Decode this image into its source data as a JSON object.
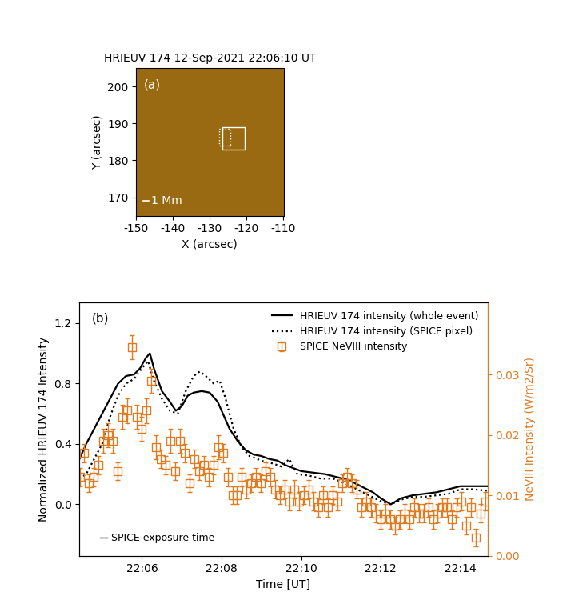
{
  "chart_data": [
    {
      "type": "image",
      "title": "HRIEUV 174 12-Sep-2021 22:06:10 UT",
      "panel_label": "(a)",
      "xlabel": "X (arcsec)",
      "ylabel": "Y (arcsec)",
      "xlim": [
        -150,
        -110
      ],
      "ylim": [
        165,
        205
      ],
      "xticks": [
        -150,
        -140,
        -130,
        -120,
        -110
      ],
      "yticks": [
        170,
        180,
        190,
        200
      ],
      "color": "#9a6a12",
      "boxes": [
        {
          "x": [
            -126.5,
            -120.5
          ],
          "y": [
            183,
            189
          ],
          "line_style": "solid",
          "color": "#ffffff"
        },
        {
          "x": [
            -127.5,
            -124.5
          ],
          "y": [
            184,
            188.5
          ],
          "line_style": "dotted",
          "color": "#ffffff"
        }
      ],
      "scale_bar": {
        "label": "1 Mm",
        "length": 1.4
      }
    },
    {
      "type": "line",
      "panel_label": "(b)",
      "xlabel": "Time [UT]",
      "ylabel": "Normalized HRIEUV 174 Intensity",
      "y2label": "NeVIII Intensity (W/m2/Sr)",
      "xlim": [
        4.43,
        14.68
      ],
      "xticks": [
        {
          "value": 6,
          "label": "22:06"
        },
        {
          "value": 8,
          "label": "22:08"
        },
        {
          "value": 10,
          "label": "22:10"
        },
        {
          "value": 12,
          "label": "22:12"
        },
        {
          "value": 14,
          "label": "22:14"
        }
      ],
      "ylim": [
        -0.34,
        1.34
      ],
      "yticks": [
        0.0,
        0.4,
        0.8,
        1.2
      ],
      "y2lim": [
        0,
        0.042
      ],
      "y2ticks": [
        {
          "value": 0,
          "label": "0.00"
        },
        {
          "value": 0.01,
          "label": "0.01"
        },
        {
          "value": 0.02,
          "label": "0.02"
        },
        {
          "value": 0.03,
          "label": "0.03"
        }
      ],
      "legend": "upper right",
      "exposure_bar": {
        "label": "SPICE exposure time",
        "width": 0.18
      },
      "series": [
        {
          "name": "HRIEUV 174 intensity (whole event)",
          "color": "#000000",
          "line_style": "solid",
          "marker": "none",
          "x": [
            4.43,
            4.6,
            4.8,
            5.0,
            5.2,
            5.4,
            5.6,
            5.8,
            5.95,
            6.1,
            6.2,
            6.3,
            6.5,
            6.7,
            6.85,
            7.0,
            7.15,
            7.3,
            7.5,
            7.7,
            7.9,
            8.0,
            8.2,
            8.4,
            8.6,
            8.8,
            9.0,
            9.2,
            9.4,
            9.6,
            9.8,
            10.0,
            10.3,
            10.6,
            10.9,
            11.2,
            11.5,
            11.8,
            12.0,
            12.25,
            12.5,
            12.8,
            13.1,
            13.4,
            13.7,
            14.0,
            14.3,
            14.68
          ],
          "values": [
            0.3,
            0.4,
            0.5,
            0.6,
            0.7,
            0.8,
            0.85,
            0.86,
            0.9,
            0.97,
            1.0,
            0.9,
            0.75,
            0.68,
            0.62,
            0.65,
            0.72,
            0.74,
            0.75,
            0.74,
            0.68,
            0.62,
            0.5,
            0.42,
            0.36,
            0.33,
            0.32,
            0.3,
            0.29,
            0.26,
            0.24,
            0.22,
            0.21,
            0.2,
            0.18,
            0.16,
            0.12,
            0.08,
            0.04,
            0.0,
            0.04,
            0.06,
            0.07,
            0.08,
            0.1,
            0.12,
            0.12,
            0.12
          ]
        },
        {
          "name": "HRIEUV 174 intensity (SPICE pixel)",
          "color": "#000000",
          "line_style": "dotted",
          "marker": "none",
          "x": [
            4.43,
            4.6,
            4.8,
            5.0,
            5.2,
            5.4,
            5.6,
            5.8,
            6.0,
            6.15,
            6.3,
            6.5,
            6.7,
            6.9,
            7.1,
            7.3,
            7.45,
            7.6,
            7.8,
            7.95,
            8.1,
            8.3,
            8.5,
            8.7,
            8.9,
            9.1,
            9.3,
            9.5,
            9.7,
            9.9,
            10.2,
            10.5,
            10.8,
            11.1,
            11.4,
            11.7,
            12.0,
            12.25,
            12.5,
            12.8,
            13.1,
            13.4,
            13.7,
            14.0,
            14.3,
            14.68
          ],
          "values": [
            0.17,
            0.2,
            0.3,
            0.4,
            0.58,
            0.72,
            0.8,
            0.83,
            0.9,
            0.95,
            0.82,
            0.7,
            0.62,
            0.6,
            0.75,
            0.85,
            0.88,
            0.85,
            0.8,
            0.82,
            0.7,
            0.5,
            0.38,
            0.32,
            0.3,
            0.28,
            0.27,
            0.25,
            0.3,
            0.2,
            0.19,
            0.17,
            0.17,
            0.14,
            0.1,
            0.06,
            0.02,
            0.0,
            0.03,
            0.05,
            0.05,
            0.06,
            0.07,
            0.1,
            0.1,
            0.09
          ]
        },
        {
          "name": "SPICE NeVIII intensity",
          "color": "#e07b20",
          "line_style": "none",
          "marker": "square",
          "axis": "y2",
          "x": [
            4.45,
            4.55,
            4.67,
            4.79,
            4.91,
            5.03,
            5.15,
            5.27,
            5.39,
            5.51,
            5.63,
            5.75,
            5.87,
            5.99,
            6.11,
            6.23,
            6.35,
            6.47,
            6.59,
            6.71,
            6.83,
            6.95,
            7.07,
            7.19,
            7.31,
            7.43,
            7.55,
            7.67,
            7.79,
            7.91,
            8.03,
            8.15,
            8.27,
            8.39,
            8.51,
            8.63,
            8.75,
            8.87,
            8.99,
            9.11,
            9.23,
            9.35,
            9.47,
            9.59,
            9.71,
            9.83,
            9.95,
            10.07,
            10.19,
            10.31,
            10.43,
            10.55,
            10.67,
            10.79,
            10.91,
            11.03,
            11.15,
            11.27,
            11.39,
            11.51,
            11.63,
            11.75,
            11.87,
            11.99,
            12.11,
            12.23,
            12.35,
            12.47,
            12.59,
            12.71,
            12.83,
            12.95,
            13.07,
            13.19,
            13.31,
            13.43,
            13.55,
            13.67,
            13.79,
            13.91,
            14.03,
            14.15,
            14.27,
            14.39,
            14.51,
            14.63
          ],
          "values": [
            0.013,
            0.017,
            0.012,
            0.013,
            0.015,
            0.019,
            0.02,
            0.019,
            0.014,
            0.023,
            0.024,
            0.0345,
            0.023,
            0.021,
            0.024,
            0.029,
            0.018,
            0.016,
            0.015,
            0.019,
            0.014,
            0.019,
            0.017,
            0.012,
            0.016,
            0.014,
            0.015,
            0.013,
            0.015,
            0.018,
            0.017,
            0.013,
            0.01,
            0.01,
            0.013,
            0.011,
            0.012,
            0.013,
            0.012,
            0.014,
            0.013,
            0.011,
            0.01,
            0.011,
            0.009,
            0.011,
            0.009,
            0.01,
            0.011,
            0.009,
            0.008,
            0.01,
            0.008,
            0.01,
            0.009,
            0.012,
            0.013,
            0.012,
            0.011,
            0.008,
            0.009,
            0.008,
            0.007,
            0.006,
            0.007,
            0.006,
            0.005,
            0.006,
            0.007,
            0.006,
            0.008,
            0.007,
            0.007,
            0.008,
            0.006,
            0.007,
            0.008,
            0.008,
            0.006,
            0.008,
            0.009,
            0.005,
            0.008,
            0.003,
            0.007,
            0.009
          ],
          "errors": [
            0.0015,
            0.0015,
            0.0015,
            0.0015,
            0.0015,
            0.002,
            0.002,
            0.002,
            0.0015,
            0.002,
            0.002,
            0.002,
            0.002,
            0.002,
            0.002,
            0.002,
            0.002,
            0.0015,
            0.0015,
            0.002,
            0.0015,
            0.002,
            0.0015,
            0.0015,
            0.0015,
            0.0015,
            0.0015,
            0.0015,
            0.0015,
            0.002,
            0.0015,
            0.0015,
            0.0015,
            0.0015,
            0.0015,
            0.0015,
            0.0015,
            0.0015,
            0.0015,
            0.0015,
            0.0015,
            0.0015,
            0.0015,
            0.0015,
            0.0015,
            0.0015,
            0.0015,
            0.0015,
            0.0015,
            0.0015,
            0.0015,
            0.0015,
            0.0015,
            0.0015,
            0.0015,
            0.0015,
            0.0015,
            0.0015,
            0.0015,
            0.0015,
            0.0015,
            0.0015,
            0.0015,
            0.0015,
            0.0015,
            0.0015,
            0.0015,
            0.0015,
            0.0015,
            0.0015,
            0.0015,
            0.0015,
            0.0015,
            0.0015,
            0.0015,
            0.0015,
            0.0015,
            0.0015,
            0.0015,
            0.0015,
            0.0015,
            0.0015,
            0.0015,
            0.0015,
            0.0015,
            0.0015
          ]
        }
      ]
    }
  ]
}
